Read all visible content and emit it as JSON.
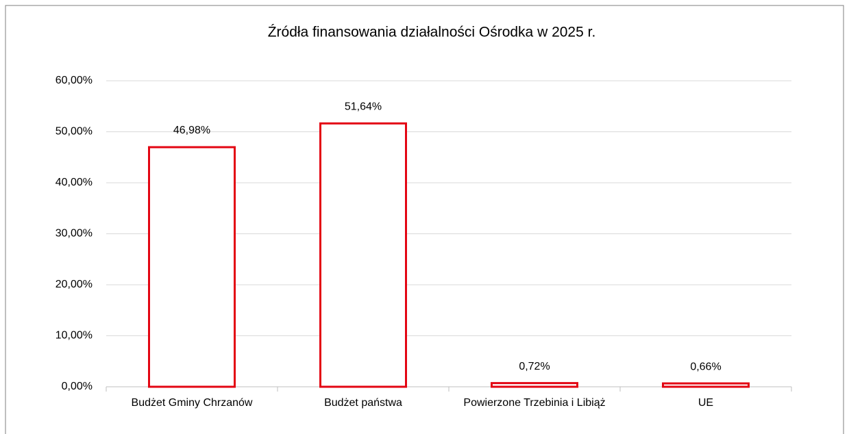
{
  "chart_data": {
    "type": "bar",
    "title": "Źródła finansowania działalności Ośrodka w 2025 r.",
    "categories": [
      "Budżet Gminy Chrzanów",
      "Budżet państwa",
      "Powierzone Trzebinia i Libiąż",
      "UE"
    ],
    "values": [
      46.98,
      51.64,
      0.72,
      0.66
    ],
    "value_labels": [
      "46,98%",
      "51,64%",
      "0,72%",
      "0,66%"
    ],
    "color": "#e30613",
    "ylim": [
      0,
      60
    ],
    "yticks": [
      {
        "value": 0,
        "label": "0,00%"
      },
      {
        "value": 10,
        "label": "10,00%"
      },
      {
        "value": 20,
        "label": "20,00%"
      },
      {
        "value": 30,
        "label": "30,00%"
      },
      {
        "value": 40,
        "label": "40,00%"
      },
      {
        "value": 50,
        "label": "50,00%"
      },
      {
        "value": 60,
        "label": "60,00%"
      }
    ],
    "grid": true
  }
}
